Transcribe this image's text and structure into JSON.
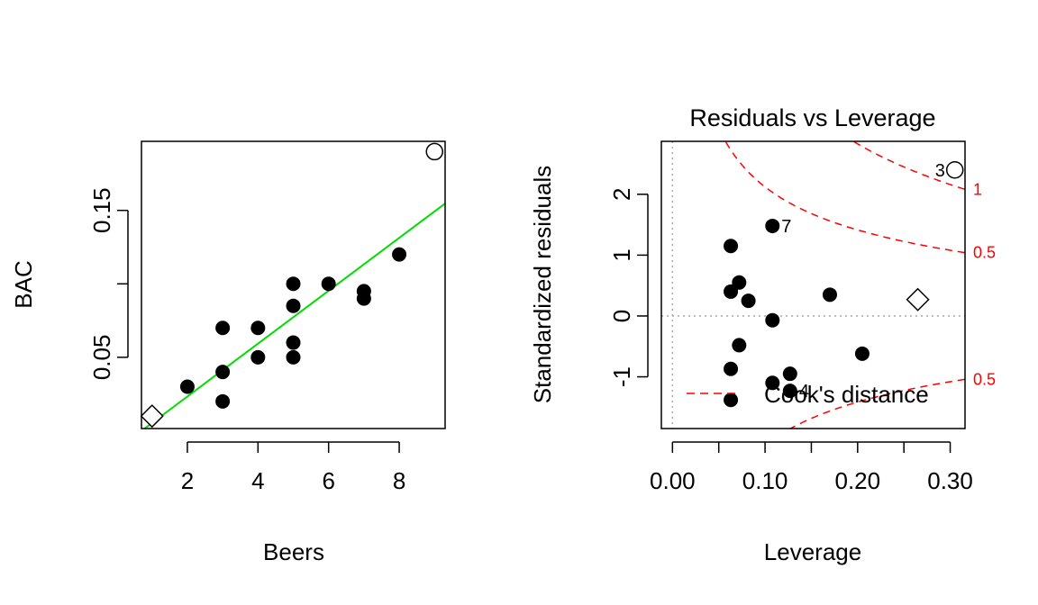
{
  "chart_data": [
    {
      "type": "scatter",
      "title": "",
      "xlabel": "Beers",
      "ylabel": "BAC",
      "xlim": [
        0.7,
        9.3
      ],
      "ylim": [
        0.0015,
        0.197
      ],
      "xticks": [
        2,
        4,
        6,
        8
      ],
      "xtick_labels": [
        "2",
        "4",
        "6",
        "8"
      ],
      "yticks": [
        0.05,
        0.1,
        0.15
      ],
      "ytick_labels": [
        "0.05",
        "",
        "0.15"
      ],
      "points": [
        {
          "x": 2,
          "y": 0.03
        },
        {
          "x": 3,
          "y": 0.02
        },
        {
          "x": 3,
          "y": 0.04
        },
        {
          "x": 3,
          "y": 0.07
        },
        {
          "x": 4,
          "y": 0.05
        },
        {
          "x": 4,
          "y": 0.07
        },
        {
          "x": 5,
          "y": 0.05
        },
        {
          "x": 5,
          "y": 0.06
        },
        {
          "x": 5,
          "y": 0.085
        },
        {
          "x": 5,
          "y": 0.1
        },
        {
          "x": 6,
          "y": 0.1
        },
        {
          "x": 7,
          "y": 0.09
        },
        {
          "x": 7,
          "y": 0.095
        },
        {
          "x": 8,
          "y": 0.12
        }
      ],
      "highlighted": [
        {
          "shape": "diamond",
          "x": 1,
          "y": 0.01
        },
        {
          "shape": "circle",
          "x": 9,
          "y": 0.19
        }
      ],
      "fit_line": {
        "intercept": -0.0127,
        "slope": 0.018,
        "color": "#00dd00"
      }
    },
    {
      "type": "scatter",
      "title": "Residuals vs Leverage",
      "xlabel": "Leverage",
      "ylabel": "Standardized residuals",
      "xlim": [
        -0.012,
        0.316
      ],
      "ylim": [
        -1.85,
        2.87
      ],
      "xticks": [
        0,
        0.05,
        0.1,
        0.15,
        0.2,
        0.25,
        0.3
      ],
      "xtick_labels": [
        "0.00",
        "",
        "0.10",
        "",
        "0.20",
        "",
        "0.30"
      ],
      "yticks": [
        -1,
        0,
        1,
        2
      ],
      "ytick_labels": [
        "-1",
        "0",
        "1",
        "2"
      ],
      "points": [
        {
          "x": 0.063,
          "y": 1.15
        },
        {
          "x": 0.063,
          "y": 0.4
        },
        {
          "x": 0.063,
          "y": -0.87
        },
        {
          "x": 0.063,
          "y": -1.38
        },
        {
          "x": 0.072,
          "y": 0.55
        },
        {
          "x": 0.072,
          "y": -0.48
        },
        {
          "x": 0.082,
          "y": 0.25
        },
        {
          "x": 0.108,
          "y": 1.48
        },
        {
          "x": 0.108,
          "y": -0.07
        },
        {
          "x": 0.108,
          "y": -1.1
        },
        {
          "x": 0.127,
          "y": -0.95
        },
        {
          "x": 0.127,
          "y": -1.23
        },
        {
          "x": 0.17,
          "y": 0.35
        },
        {
          "x": 0.205,
          "y": -0.62
        }
      ],
      "highlighted": [
        {
          "shape": "diamond",
          "x": 0.265,
          "y": 0.27
        },
        {
          "shape": "circle",
          "x": 0.305,
          "y": 2.4
        }
      ],
      "point_labels": [
        {
          "text": "7",
          "x": 0.108,
          "y": 1.48
        },
        {
          "text": "3",
          "x": 0.305,
          "y": 2.4
        },
        {
          "text": "4",
          "x": 0.127,
          "y": -1.23
        }
      ],
      "cooks_contours": [
        {
          "label": "1",
          "level": 1,
          "color": "#ff0000"
        },
        {
          "label": "0.5",
          "level": 0.5,
          "color": "#ff0000"
        },
        {
          "label": "0.5",
          "level": -0.5,
          "color": "#ff0000"
        }
      ],
      "legend": {
        "label": "Cook's distance",
        "placement": "bottom-left",
        "color": "#ff0000"
      }
    }
  ]
}
